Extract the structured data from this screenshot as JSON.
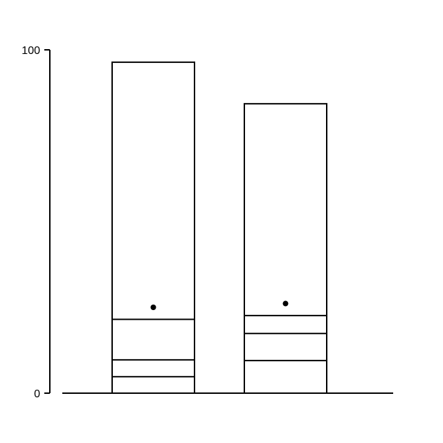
{
  "chart_data": {
    "type": "bar",
    "title": "",
    "xlabel": "",
    "ylabel": "",
    "ylim": [
      0,
      100
    ],
    "y_ticks": [
      "0",
      "100"
    ],
    "grid": false,
    "legend": "none",
    "stroke_color": "#000000",
    "fill_color": "#ffffff",
    "bars": [
      {
        "total": 96.4,
        "segment_boundaries": [
          4.8,
          9.7,
          21.5
        ],
        "marker": 25.0
      },
      {
        "total": 84.3,
        "segment_boundaries": [
          9.5,
          17.4,
          22.6
        ],
        "marker": 26.1
      }
    ]
  }
}
